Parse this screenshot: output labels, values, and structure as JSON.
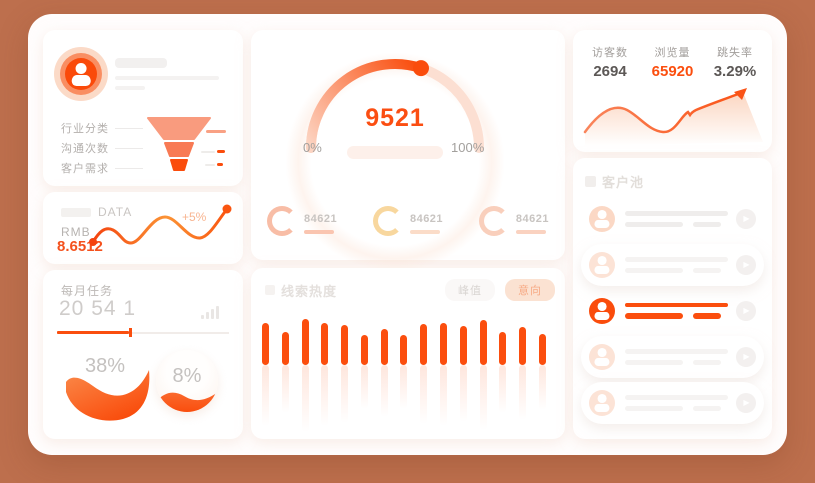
{
  "theme": {
    "background": "#bd6f4d",
    "panel": "#fffdfd",
    "card": "#ffffff",
    "accent": "#fb4e0e",
    "salmon": "#f98e62",
    "peach": "#fcdccd",
    "muted_text": "#a3a09d"
  },
  "profile_card": {
    "avatar_icon": "person-icon",
    "funnel_rows": [
      {
        "label": "行业分类"
      },
      {
        "label": "沟通次数"
      },
      {
        "label": "客户需求"
      }
    ],
    "chart_data": {
      "type": "funnel",
      "categories": [
        "行业分类",
        "沟通次数",
        "客户需求"
      ],
      "colors": [
        "#f99b7e",
        "#f87a54",
        "#fa4c0c"
      ]
    }
  },
  "data_card": {
    "title": "DATA",
    "currency_label": "RMB",
    "value": "8.6512",
    "delta_label": "+5%",
    "chart_data": {
      "type": "line",
      "values": [
        50,
        36,
        51,
        25,
        46,
        17
      ],
      "note": "decorative trend wave, higher = lower y"
    }
  },
  "tasks_card": {
    "title": "每月任务",
    "value": "20 54 1",
    "progress_percent": 42,
    "gauges": [
      {
        "label": "38%",
        "percent": 38
      },
      {
        "label": "8%",
        "percent": 8
      }
    ]
  },
  "gauge_card": {
    "value": "9521",
    "min_label": "0%",
    "max_label": "100%",
    "percent": 60,
    "counters": [
      {
        "value": "84621"
      },
      {
        "value": "84621"
      },
      {
        "value": "84621"
      }
    ]
  },
  "heat_card": {
    "title": "线索热度",
    "buttons": [
      {
        "label": "峰值",
        "active": false
      },
      {
        "label": "意向",
        "active": true
      }
    ],
    "chart_data": {
      "type": "bar",
      "values": [
        42,
        33,
        46,
        42,
        40,
        30,
        36,
        30,
        41,
        42,
        39,
        45,
        33,
        38,
        31
      ],
      "color": "#fb4e0e",
      "reflection": true
    }
  },
  "stats_card": {
    "stats": [
      {
        "label": "访客数",
        "value": "2694",
        "highlight": false
      },
      {
        "label": "浏览量",
        "value": "65920",
        "highlight": true
      },
      {
        "label": "跳失率",
        "value": "3.29%",
        "highlight": false
      }
    ],
    "chart_data": {
      "type": "line",
      "note": "rising trend line with arrow, no axis values shown"
    }
  },
  "pool_card": {
    "title": "客户池",
    "items": [
      {
        "active": false,
        "boxed": false,
        "strong": true
      },
      {
        "active": false,
        "boxed": true,
        "strong": false
      },
      {
        "active": true,
        "boxed": false,
        "strong": false
      },
      {
        "active": false,
        "boxed": true,
        "strong": false
      },
      {
        "active": false,
        "boxed": true,
        "strong": false
      }
    ]
  }
}
